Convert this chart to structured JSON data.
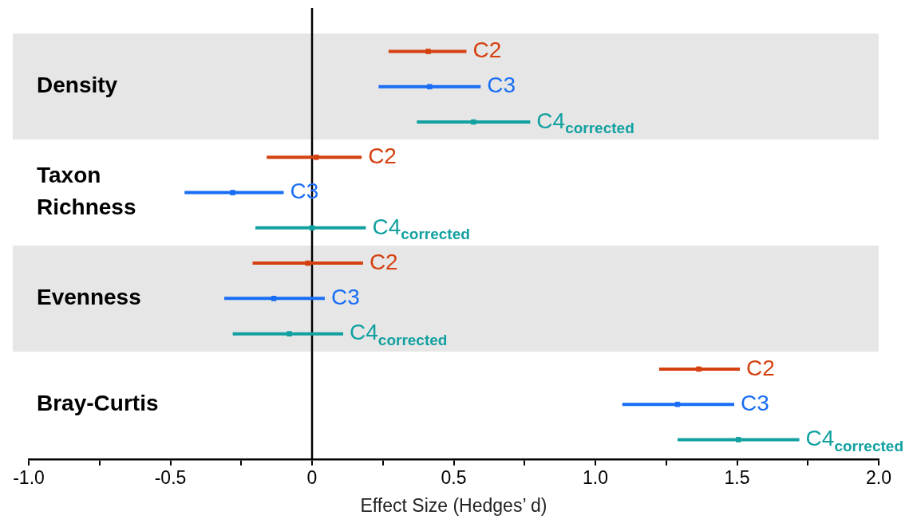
{
  "chart_data": {
    "type": "scatter",
    "orientation": "horizontal",
    "xlabel": "Effect Size (Hedges’ d)",
    "categories": [
      null,
      "Density",
      null,
      null,
      "Taxon Richness",
      null,
      null,
      "Evenness",
      null,
      null,
      "Bray-Curtis",
      null
    ],
    "series": [
      {
        "name": "C2",
        "color": "#d4400f",
        "values": [
          0.41,
          null,
          null,
          0.015,
          null,
          null,
          -0.015,
          null,
          null,
          1.365,
          null,
          null
        ],
        "errors": [
          [
            0.27,
            0.545
          ],
          null,
          null,
          [
            -0.16,
            0.175
          ],
          null,
          null,
          [
            -0.21,
            0.18
          ],
          null,
          null,
          [
            1.225,
            1.51
          ],
          null,
          null
        ]
      },
      {
        "name": "C3",
        "color": "#1a6ef5",
        "values": [
          null,
          0.415,
          null,
          null,
          -0.28,
          null,
          null,
          -0.135,
          null,
          null,
          1.29,
          null
        ],
        "errors": [
          null,
          [
            0.235,
            0.595
          ],
          null,
          null,
          [
            -0.45,
            -0.1
          ],
          null,
          null,
          [
            -0.31,
            0.045
          ],
          null,
          null,
          [
            1.095,
            1.49
          ],
          null
        ]
      },
      {
        "name": "C4$_{corrected}$",
        "color": "#12a0a0",
        "values": [
          null,
          null,
          0.57,
          null,
          null,
          0.0,
          null,
          null,
          -0.08,
          null,
          null,
          1.505
        ],
        "errors": [
          null,
          null,
          [
            0.37,
            0.77
          ],
          null,
          null,
          [
            -0.2,
            0.19
          ],
          null,
          null,
          [
            -0.28,
            0.11
          ],
          null,
          null,
          [
            1.29,
            1.72
          ]
        ]
      }
    ],
    "xlim": [
      -1,
      2
    ],
    "xticks": [
      {
        "value": -1,
        "label": "-1.0"
      },
      {
        "value": -0.75,
        "label": null
      },
      {
        "value": -0.5,
        "label": "-0.5"
      },
      {
        "value": -0.25,
        "label": null
      },
      {
        "value": 0,
        "label": "0"
      },
      {
        "value": 0.25,
        "label": null
      },
      {
        "value": 0.5,
        "label": "0.5"
      },
      {
        "value": 0.75,
        "label": null
      },
      {
        "value": 1,
        "label": "1.0"
      },
      {
        "value": 1.25,
        "label": null
      },
      {
        "value": 1.5,
        "label": "1.5"
      },
      {
        "value": 1.75,
        "label": null
      },
      {
        "value": 2,
        "label": "2.0"
      }
    ],
    "ref_lines": [
      {
        "axis": "x",
        "value": 0,
        "color": "#000000"
      }
    ],
    "grid": false
  }
}
